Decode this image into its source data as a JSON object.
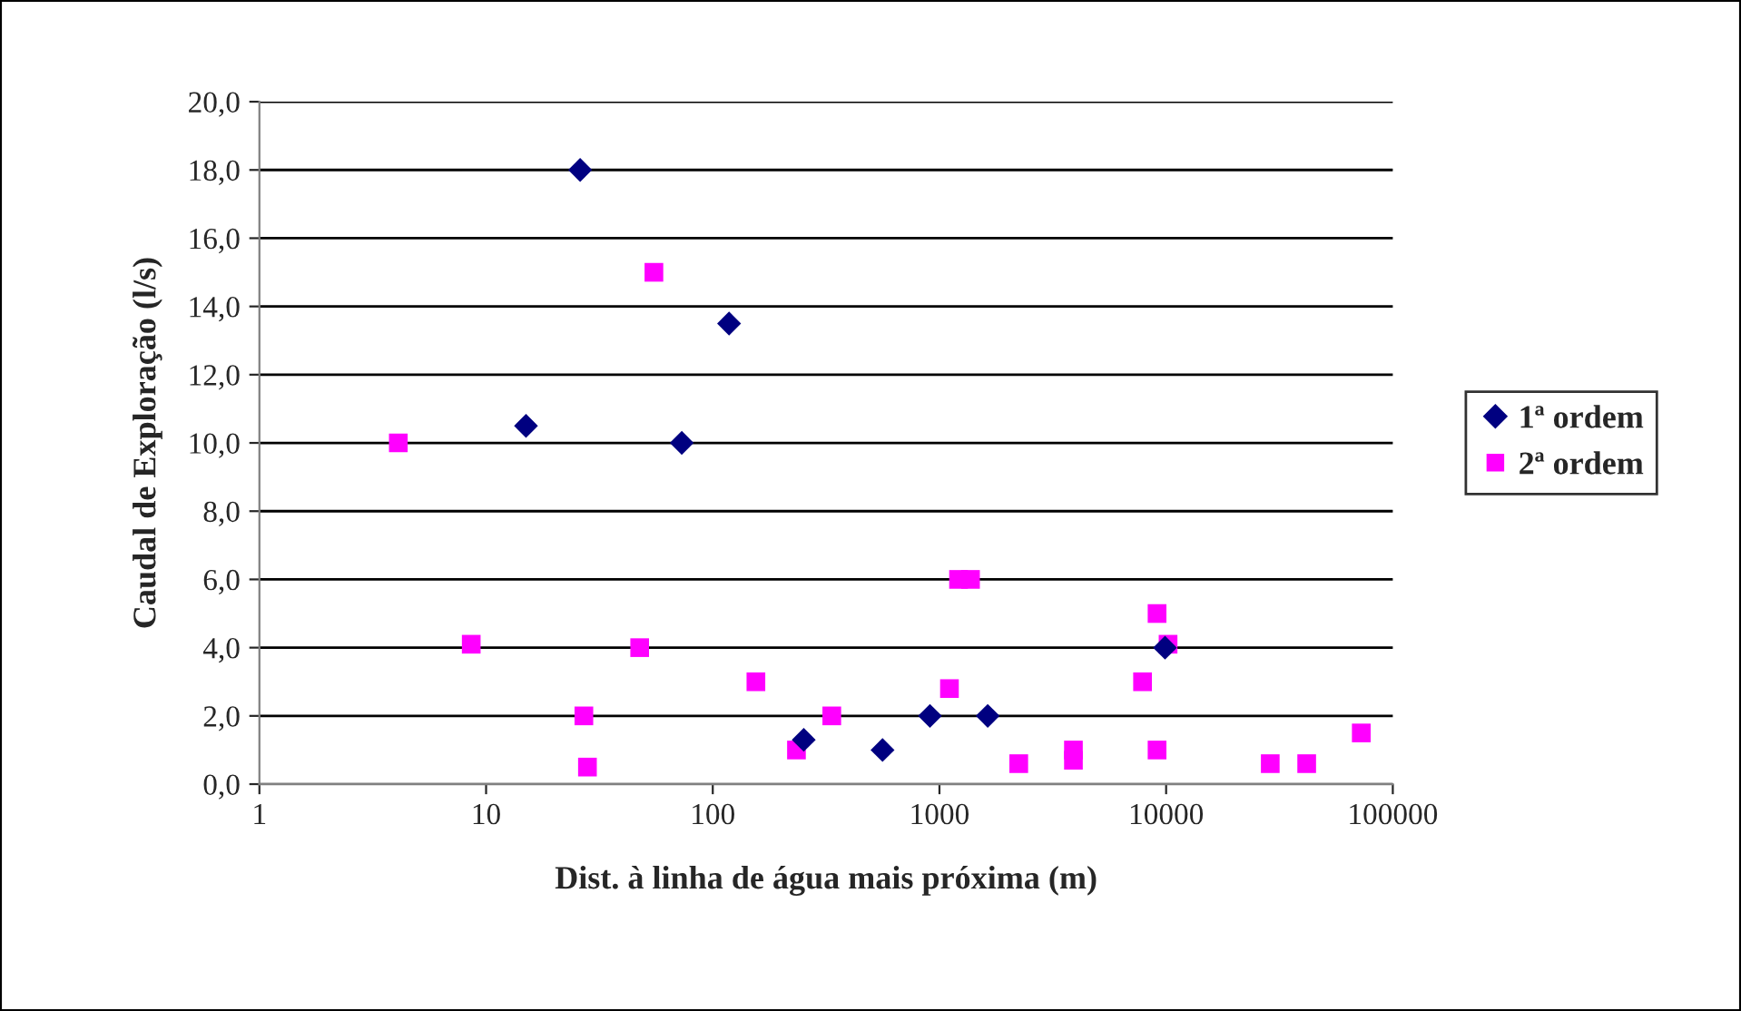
{
  "chart_data": {
    "type": "scatter",
    "xlabel": "Dist. à linha de água mais próxima (m)",
    "ylabel": "Caudal de Exploração (l/s)",
    "log": "x",
    "grid": "y",
    "legend": "right",
    "xlim": [
      1,
      100000
    ],
    "xticks": [
      1,
      10,
      100,
      1000,
      10000,
      100000
    ],
    "ylim": [
      0,
      20
    ],
    "yticks": [
      {
        "value": 0,
        "label": "0,0"
      },
      {
        "value": 2,
        "label": "2,0"
      },
      {
        "value": 4,
        "label": "4,0"
      },
      {
        "value": 6,
        "label": "6,0"
      },
      {
        "value": 8,
        "label": "8,0"
      },
      {
        "value": 10,
        "label": "10,0"
      },
      {
        "value": 12,
        "label": "12,0"
      },
      {
        "value": 14,
        "label": "14,0"
      },
      {
        "value": 16,
        "label": "16,0"
      },
      {
        "value": 18,
        "label": "18,0"
      },
      {
        "value": 20,
        "label": "20,0"
      }
    ],
    "series": [
      {
        "name": "1ª ordem",
        "color": "#000080",
        "marker": "diamond",
        "x": [
          26,
          15,
          73,
          118,
          252,
          561,
          908,
          1633,
          9890
        ],
        "values": [
          18.0,
          10.5,
          10.0,
          13.5,
          1.3,
          1.0,
          2.0,
          2.0,
          4.0
        ]
      },
      {
        "name": "2ª ordem",
        "color": "#ff00ff",
        "marker": "square",
        "x": [
          4.1,
          8.6,
          55,
          47.6,
          155,
          27,
          28,
          234,
          335,
          1107,
          1214,
          1371,
          2238,
          3900,
          3900,
          7870,
          9120,
          10200,
          9120,
          28800,
          41700,
          72600
        ],
        "values": [
          10.0,
          4.1,
          15.0,
          4.0,
          3.0,
          2.0,
          0.5,
          1.0,
          2.0,
          2.8,
          6.0,
          6.0,
          0.6,
          1.0,
          0.7,
          3.0,
          5.0,
          4.1,
          1.0,
          0.6,
          0.6,
          1.5
        ]
      }
    ]
  }
}
